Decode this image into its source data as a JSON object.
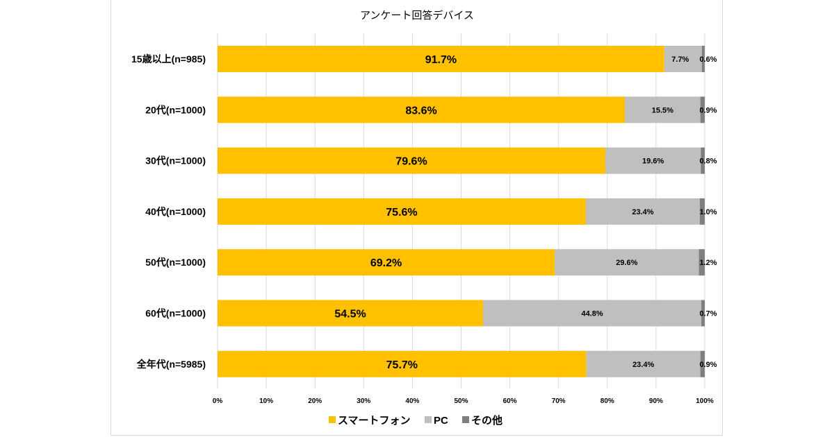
{
  "chart_data": {
    "type": "bar",
    "orientation": "horizontal",
    "stacked": "percent",
    "title": "アンケート回答デバイス",
    "categories": [
      "15歳以上(n=985)",
      "20代(n=1000)",
      "30代(n=1000)",
      "40代(n=1000)",
      "50代(n=1000)",
      "60代(n=1000)",
      "全年代(n=5985)"
    ],
    "series": [
      {
        "name": "スマートフォン",
        "color": "#FFC000",
        "values": [
          91.7,
          83.6,
          79.6,
          75.6,
          69.2,
          54.5,
          75.7
        ],
        "labels": [
          "91.7%",
          "83.6%",
          "79.6%",
          "75.6%",
          "69.2%",
          "54.5%",
          "75.7%"
        ]
      },
      {
        "name": "PC",
        "color": "#BFBFBF",
        "values": [
          7.7,
          15.5,
          19.6,
          23.4,
          29.6,
          44.8,
          23.4
        ],
        "labels": [
          "7.7%",
          "15.5%",
          "19.6%",
          "23.4%",
          "29.6%",
          "44.8%",
          "23.4%"
        ]
      },
      {
        "name": "その他",
        "color": "#7F7F7F",
        "values": [
          0.6,
          0.9,
          0.8,
          1.0,
          1.2,
          0.7,
          0.9
        ],
        "labels": [
          "0.6%",
          "0.9%",
          "0.8%",
          "1.0%",
          "1.2%",
          "0.7%",
          "0.9%"
        ]
      }
    ],
    "xlim": [
      0,
      100
    ],
    "xticks": [
      "0%",
      "10%",
      "20%",
      "30%",
      "40%",
      "50%",
      "60%",
      "70%",
      "80%",
      "90%",
      "100%"
    ],
    "grid": true,
    "legend": "bottom"
  }
}
